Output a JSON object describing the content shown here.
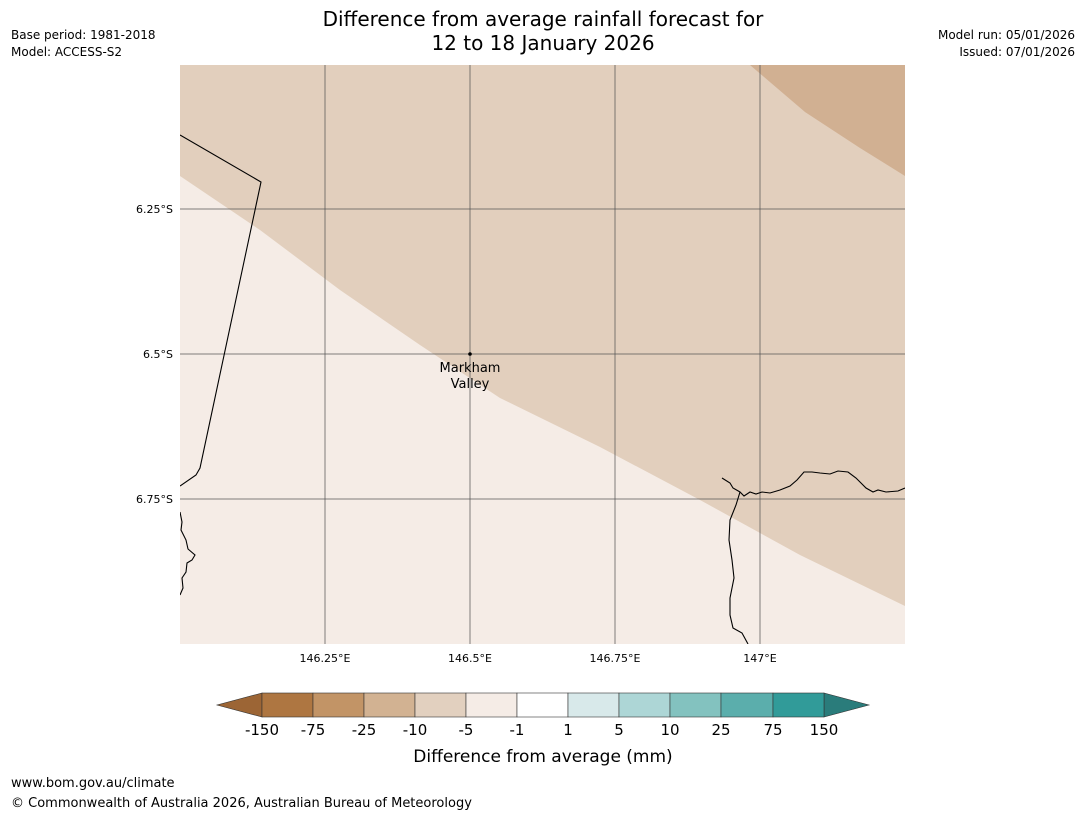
{
  "title": {
    "line1": "Difference from average rainfall forecast for",
    "line2": "12 to 18 January 2026"
  },
  "meta_left": {
    "base_period": "Base period: 1981-2018",
    "model": "Model: ACCESS-S2"
  },
  "meta_right": {
    "model_run": "Model run: 05/01/2026",
    "issued": "Issued: 07/01/2026"
  },
  "map": {
    "lat_labels": [
      "6.25°S",
      "6.5°S",
      "6.75°S"
    ],
    "lon_labels": [
      "146.25°E",
      "146.5°E",
      "146.75°E",
      "147°E"
    ],
    "place": {
      "line1": "Markham",
      "line2": "Valley"
    },
    "region_colors": {
      "minus1_to_plus1_area": "#f5ece6",
      "minus5_to_minus1_area": "#e2cfbd",
      "minus10_to_minus5_area": "#d1b092"
    }
  },
  "colorbar": {
    "title": "Difference from average (mm)",
    "ticks": [
      "-150",
      "-75",
      "-25",
      "-10",
      "-5",
      "-1",
      "1",
      "5",
      "10",
      "25",
      "75",
      "150"
    ],
    "colors": [
      "#ae7641",
      "#c29466",
      "#d2b292",
      "#e2d0bf",
      "#f5ece6",
      "#ffffff",
      "#d8e9ea",
      "#add6d6",
      "#83c2bf",
      "#5baeac",
      "#319b99"
    ],
    "under_color": "#9c6535",
    "over_color": "#2a7c7b"
  },
  "footer": {
    "url": "www.bom.gov.au/climate",
    "copyright": "© Commonwealth of Australia 2026, Australian Bureau of Meteorology"
  }
}
